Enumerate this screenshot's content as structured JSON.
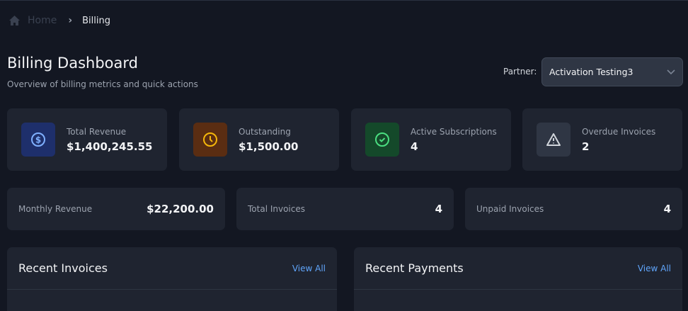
{
  "breadcrumb": {
    "home": "Home",
    "current": "Billing"
  },
  "page": {
    "title": "Billing Dashboard",
    "subtitle": "Overview of billing metrics and quick actions"
  },
  "partner": {
    "label": "Partner:",
    "selected": "Activation Testing3"
  },
  "stats": [
    {
      "label": "Total Revenue",
      "value": "$1,400,245.55",
      "icon": "dollar-icon",
      "bg": "#1e2f6b",
      "color": "#7fb0ff"
    },
    {
      "label": "Outstanding",
      "value": "$1,500.00",
      "icon": "clock-icon",
      "bg": "#5a2d12",
      "color": "#f5b70a"
    },
    {
      "label": "Active Subscriptions",
      "value": "4",
      "icon": "check-circle-icon",
      "bg": "#14492a",
      "color": "#4ade80"
    },
    {
      "label": "Overdue Invoices",
      "value": "2",
      "icon": "warning-icon",
      "bg": "#2f3644",
      "color": "#d1d5db"
    }
  ],
  "metrics": [
    {
      "label": "Monthly Revenue",
      "value": "$22,200.00"
    },
    {
      "label": "Total Invoices",
      "value": "4"
    },
    {
      "label": "Unpaid Invoices",
      "value": "4"
    }
  ],
  "panels": [
    {
      "title": "Recent Invoices",
      "link": "View All"
    },
    {
      "title": "Recent Payments",
      "link": "View All"
    }
  ]
}
